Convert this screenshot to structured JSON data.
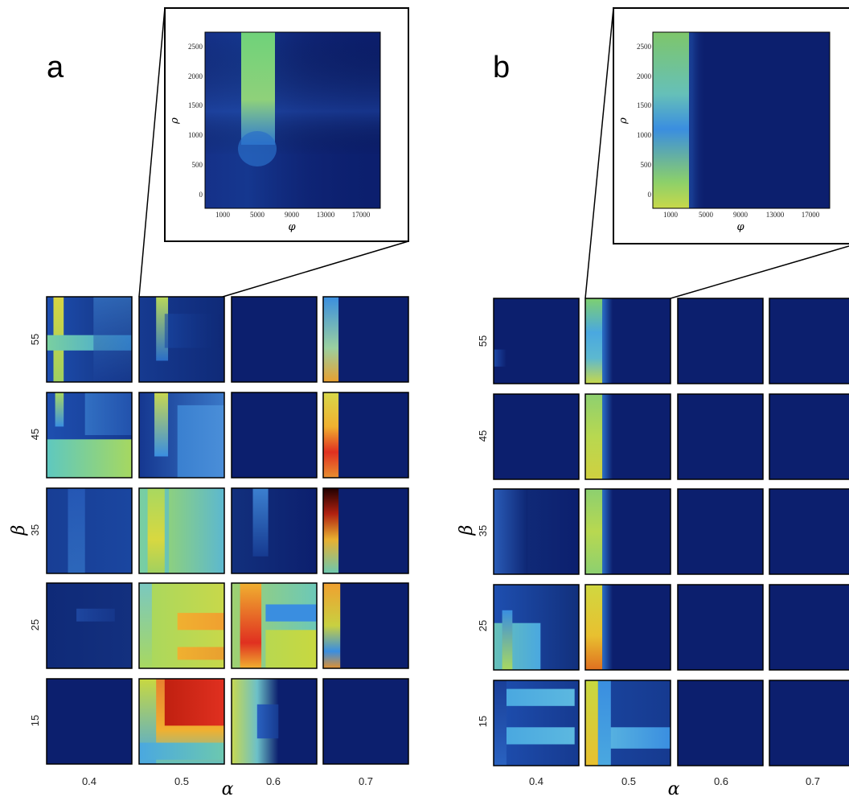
{
  "panels": [
    {
      "label": "a",
      "alpha_label": "α",
      "beta_label": "β",
      "inset": {
        "ylabel": "ρ",
        "xlabel": "φ",
        "yticks": [
          "2500",
          "2000",
          "1500",
          "1000",
          "500",
          "0"
        ],
        "xticks": [
          "1000",
          "5000",
          "9000",
          "13000",
          "17000"
        ]
      }
    },
    {
      "label": "b",
      "alpha_label": "α",
      "beta_label": "β",
      "inset": {
        "ylabel": "ρ",
        "xlabel": "φ",
        "yticks": [
          "2500",
          "2000",
          "1500",
          "1000",
          "500",
          "0"
        ],
        "xticks": [
          "1000",
          "5000",
          "9000",
          "13000",
          "17000"
        ]
      }
    }
  ],
  "chart_data": [
    {
      "type": "heatmap",
      "panel": "a",
      "layout": "small-multiples grid",
      "x_facet": {
        "label": "α",
        "values": [
          "0.4",
          "0.5",
          "0.6",
          "0.7"
        ]
      },
      "y_facet": {
        "label": "β",
        "values": [
          "55",
          "45",
          "35",
          "25",
          "15"
        ]
      },
      "cell_axes": {
        "x": "φ",
        "y": "ρ",
        "x_range": [
          1000,
          17000
        ],
        "y_range": [
          0,
          2500
        ]
      },
      "inset_of": {
        "alpha": "0.5",
        "beta": "55"
      },
      "colormap": "jet",
      "cells": [
        {
          "beta": "55",
          "alpha": "0.4",
          "desc": "yellow stripe at low φ, cyan band at mid ρ"
        },
        {
          "beta": "55",
          "alpha": "0.5",
          "desc": "green stripe near φ≈5000 above ρ≈700"
        },
        {
          "beta": "55",
          "alpha": "0.6",
          "desc": "uniform dark"
        },
        {
          "beta": "55",
          "alpha": "0.7",
          "desc": "orange/cyan strip at low φ"
        },
        {
          "beta": "45",
          "alpha": "0.4",
          "desc": "cyan/green band at low ρ"
        },
        {
          "beta": "45",
          "alpha": "0.5",
          "desc": "green stripe at φ≈5000, lighter right"
        },
        {
          "beta": "45",
          "alpha": "0.6",
          "desc": "uniform dark"
        },
        {
          "beta": "45",
          "alpha": "0.7",
          "desc": "yellow-red strip at low φ"
        },
        {
          "beta": "35",
          "alpha": "0.4",
          "desc": "faint blue"
        },
        {
          "beta": "35",
          "alpha": "0.5",
          "desc": "broad green/cyan region"
        },
        {
          "beta": "35",
          "alpha": "0.6",
          "desc": "faint blue streak"
        },
        {
          "beta": "35",
          "alpha": "0.7",
          "desc": "red/black strip at low φ"
        },
        {
          "beta": "25",
          "alpha": "0.4",
          "desc": "faint blue"
        },
        {
          "beta": "25",
          "alpha": "0.5",
          "desc": "green/yellow with orange bands"
        },
        {
          "beta": "25",
          "alpha": "0.6",
          "desc": "cyan/green with red at left"
        },
        {
          "beta": "25",
          "alpha": "0.7",
          "desc": "orange/cyan strip at low φ"
        },
        {
          "beta": "15",
          "alpha": "0.4",
          "desc": "uniform dark"
        },
        {
          "beta": "15",
          "alpha": "0.5",
          "desc": "red/orange peak, high values"
        },
        {
          "beta": "15",
          "alpha": "0.6",
          "desc": "yellow/cyan at low φ"
        },
        {
          "beta": "15",
          "alpha": "0.7",
          "desc": "uniform dark"
        }
      ]
    },
    {
      "type": "heatmap",
      "panel": "b",
      "layout": "small-multiples grid",
      "x_facet": {
        "label": "α",
        "values": [
          "0.4",
          "0.5",
          "0.6",
          "0.7"
        ]
      },
      "y_facet": {
        "label": "β",
        "values": [
          "55",
          "45",
          "35",
          "25",
          "15"
        ]
      },
      "cell_axes": {
        "x": "φ",
        "y": "ρ",
        "x_range": [
          1000,
          17000
        ],
        "y_range": [
          0,
          2500
        ]
      },
      "inset_of": {
        "alpha": "0.5",
        "beta": "55"
      },
      "colormap": "jet",
      "cells": [
        {
          "beta": "55",
          "alpha": "0.4",
          "desc": "uniform dark"
        },
        {
          "beta": "55",
          "alpha": "0.5",
          "desc": "green/cyan strip at low φ"
        },
        {
          "beta": "55",
          "alpha": "0.6",
          "desc": "uniform dark"
        },
        {
          "beta": "55",
          "alpha": "0.7",
          "desc": "uniform dark"
        },
        {
          "beta": "45",
          "alpha": "0.4",
          "desc": "uniform dark"
        },
        {
          "beta": "45",
          "alpha": "0.5",
          "desc": "green/yellow strip at low φ"
        },
        {
          "beta": "45",
          "alpha": "0.6",
          "desc": "uniform dark"
        },
        {
          "beta": "45",
          "alpha": "0.7",
          "desc": "uniform dark"
        },
        {
          "beta": "35",
          "alpha": "0.4",
          "desc": "faint blue at low φ"
        },
        {
          "beta": "35",
          "alpha": "0.5",
          "desc": "green strip at low φ"
        },
        {
          "beta": "35",
          "alpha": "0.6",
          "desc": "uniform dark"
        },
        {
          "beta": "35",
          "alpha": "0.7",
          "desc": "uniform dark"
        },
        {
          "beta": "25",
          "alpha": "0.4",
          "desc": "cyan/green region low ρ"
        },
        {
          "beta": "25",
          "alpha": "0.5",
          "desc": "yellow/orange strip at low φ"
        },
        {
          "beta": "25",
          "alpha": "0.6",
          "desc": "uniform dark"
        },
        {
          "beta": "25",
          "alpha": "0.7",
          "desc": "uniform dark"
        },
        {
          "beta": "15",
          "alpha": "0.4",
          "desc": "cyan bands"
        },
        {
          "beta": "15",
          "alpha": "0.5",
          "desc": "yellow strip plus cyan band"
        },
        {
          "beta": "15",
          "alpha": "0.6",
          "desc": "uniform dark"
        },
        {
          "beta": "15",
          "alpha": "0.7",
          "desc": "uniform dark"
        }
      ]
    }
  ]
}
